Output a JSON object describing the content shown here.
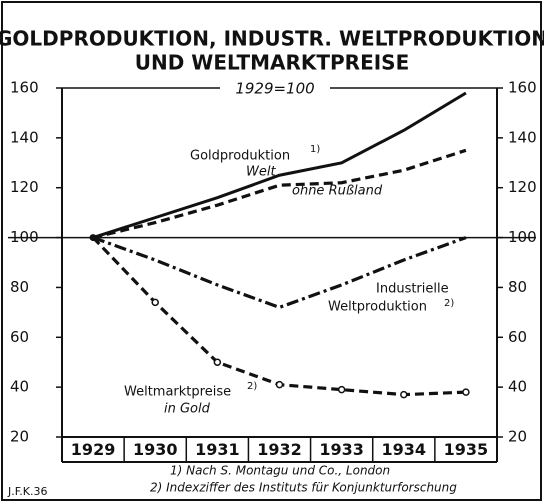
{
  "chart_data": {
    "type": "line",
    "title": [
      "GOLDPRODUKTION, INDUSTR. WELTPRODUKTION",
      "UND WELTMARKTPREISE"
    ],
    "subtitle": "1929=100",
    "categories": [
      "1929",
      "1930",
      "1931",
      "1932",
      "1933",
      "1934",
      "1935"
    ],
    "series": [
      {
        "color": "#111",
        "style": "solid",
        "values": [
          100,
          108,
          116,
          125,
          130,
          143,
          158
        ]
      },
      {
        "color": "#111",
        "style": "dashed",
        "values": [
          100,
          106,
          113,
          121,
          122,
          127,
          135
        ]
      },
      {
        "color": "#111",
        "style": "dashdot",
        "values": [
          100,
          91,
          81,
          72,
          81,
          91,
          100
        ]
      },
      {
        "color": "#111",
        "style": "dashed-markers",
        "values": [
          100,
          74,
          50,
          41,
          39,
          37,
          38
        ]
      }
    ],
    "baseline": 100,
    "ylim": [
      20,
      160
    ],
    "yticks": [
      20,
      40,
      60,
      80,
      100,
      120,
      140,
      160
    ],
    "annotations": [
      "Goldproduktion",
      "1)",
      "Welt",
      "ohne Rußland",
      "Industrielle",
      "Weltproduktion",
      "2)",
      "Weltmarktpreise",
      "2)",
      "in Gold"
    ],
    "footnotes": [
      "1) Nach S. Montagu und Co., London",
      "2) Indexziffer des Instituts für Konjunkturforschung"
    ],
    "signature": "J.F.K.36"
  }
}
